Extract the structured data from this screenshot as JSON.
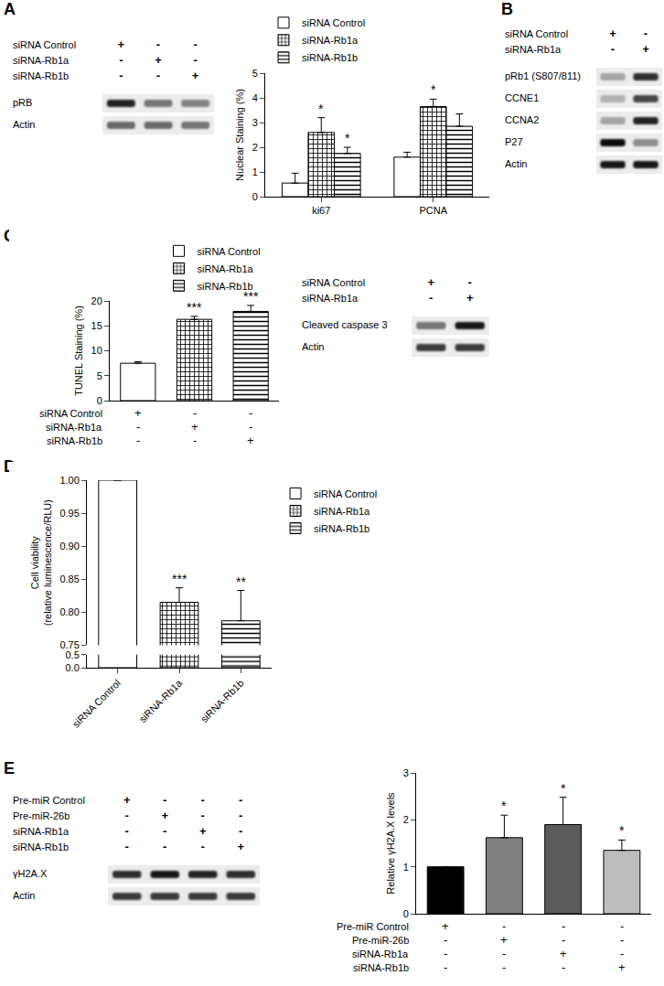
{
  "panel_letters": [
    "A",
    "B",
    "C",
    "D",
    "E"
  ],
  "blots": [
    {
      "conditions": [
        {
          "label": "siRNA Control",
          "marks": [
            "+",
            "-",
            "-"
          ]
        },
        {
          "label": "siRNA-Rb1a",
          "marks": [
            "-",
            "+",
            "-"
          ]
        },
        {
          "label": "siRNA-Rb1b",
          "marks": [
            "-",
            "-",
            "+"
          ]
        }
      ],
      "bands": [
        {
          "label": "pRB",
          "levels": [
            0.85,
            0.5,
            0.45
          ]
        },
        {
          "label": "Actin",
          "levels": [
            0.55,
            0.55,
            0.5
          ]
        }
      ]
    },
    {
      "conditions": [
        {
          "label": "siRNA Control",
          "marks": [
            "+",
            "-"
          ]
        },
        {
          "label": "siRNA-Rb1a",
          "marks": [
            "-",
            "+"
          ]
        }
      ],
      "bands": [
        {
          "label": "pRb1 (S807/811)",
          "levels": [
            0.3,
            0.8
          ]
        },
        {
          "label": "CCNE1",
          "levels": [
            0.25,
            0.7
          ]
        },
        {
          "label": "CCNA2",
          "levels": [
            0.3,
            0.85
          ]
        },
        {
          "label": "P27",
          "levels": [
            0.95,
            0.4
          ]
        },
        {
          "label": "Actin",
          "levels": [
            0.9,
            0.9
          ]
        }
      ]
    },
    {
      "conditions": [
        {
          "label": "siRNA Control",
          "marks": [
            "+",
            "-"
          ]
        },
        {
          "label": "siRNA-Rb1a",
          "marks": [
            "-",
            "+"
          ]
        }
      ],
      "bands": [
        {
          "label": "Cleaved caspase 3",
          "levels": [
            0.5,
            0.9
          ]
        },
        {
          "label": "Actin",
          "levels": [
            0.75,
            0.75
          ]
        }
      ]
    },
    {
      "conditions": [
        {
          "label": "Pre-miR Control",
          "marks": [
            "+",
            "-",
            "-",
            "-"
          ]
        },
        {
          "label": "Pre-miR-26b",
          "marks": [
            "-",
            "+",
            "-",
            "-"
          ]
        },
        {
          "label": "siRNA-Rb1a",
          "marks": [
            "-",
            "-",
            "+",
            "-"
          ]
        },
        {
          "label": "siRNA-Rb1b",
          "marks": [
            "-",
            "-",
            "-",
            "+"
          ]
        }
      ],
      "bands": [
        {
          "label": "γH2A.X",
          "levels": [
            0.8,
            0.9,
            0.85,
            0.8
          ]
        },
        {
          "label": "Actin",
          "levels": [
            0.75,
            0.75,
            0.75,
            0.75
          ]
        }
      ]
    }
  ],
  "chart_data": [
    {
      "type": "bar",
      "categories": [
        "ki67",
        "PCNA"
      ],
      "ylabel": "Nuclear Staining (%)",
      "ylim": [
        0,
        5
      ],
      "yticks": [
        0,
        1,
        2,
        3,
        4,
        5
      ],
      "legend": "top left",
      "series": [
        {
          "name": "siRNA Control",
          "color": "#ffffff",
          "marker": "plain",
          "values": [
            0.55,
            1.6
          ],
          "error": [
            0.4,
            0.2
          ],
          "significance": [
            null,
            null
          ]
        },
        {
          "name": "siRNA-Rb1a",
          "color": "#ffffff",
          "marker": "checkered",
          "values": [
            2.6,
            3.65
          ],
          "error": [
            0.6,
            0.3
          ],
          "significance": [
            "*",
            "*"
          ]
        },
        {
          "name": "siRNA-Rb1b",
          "color": "#ffffff",
          "marker": "hlines",
          "values": [
            1.75,
            2.85
          ],
          "error": [
            0.25,
            0.5
          ],
          "significance": [
            "*",
            null
          ]
        }
      ]
    },
    {
      "type": "bar",
      "categories": [
        null,
        null,
        null
      ],
      "ylabel": "TUNEL Staining (%)",
      "ylim": [
        0,
        20
      ],
      "yticks": [
        0,
        5,
        10,
        15,
        20
      ],
      "legend": "top",
      "series": [
        {
          "name": "siRNA Control",
          "color": "#ffffff",
          "marker": "plain",
          "values": [
            7.5,
            null,
            null
          ],
          "error": [
            0.3,
            null,
            null
          ],
          "significance": [
            null,
            null,
            null
          ]
        },
        {
          "name": "siRNA-Rb1a",
          "color": "#ffffff",
          "marker": "checkered",
          "values": [
            null,
            16.3,
            null
          ],
          "error": [
            null,
            0.6,
            null
          ],
          "significance": [
            null,
            "***",
            null
          ]
        },
        {
          "name": "siRNA-Rb1b",
          "color": "#ffffff",
          "marker": "hlines",
          "values": [
            null,
            null,
            17.9
          ],
          "error": [
            null,
            null,
            1.2
          ],
          "significance": [
            null,
            null,
            "***"
          ]
        }
      ],
      "conditions": [
        {
          "label": "siRNA Control",
          "marks": [
            "+",
            "-",
            "-"
          ]
        },
        {
          "label": "siRNA-Rb1a",
          "marks": [
            "-",
            "+",
            "-"
          ]
        },
        {
          "label": "siRNA-Rb1b",
          "marks": [
            "-",
            "-",
            "+"
          ]
        }
      ]
    },
    {
      "type": "bar",
      "categories": [
        "siRNA Control",
        "siRNA-Rb1a",
        "siRNA-Rb1b"
      ],
      "ylabel": "Cell viability\n(relative luminescence/RLU)",
      "ylim": [
        0.75,
        1.0
      ],
      "yticks": [
        0.75,
        {
          "value": 0.8,
          "label": "0.80"
        },
        0.85,
        {
          "value": 0.9,
          "label": "0.90"
        },
        0.95,
        {
          "value": 1.0,
          "label": "1.00"
        }
      ],
      "ylim_lower": [
        0,
        0.5
      ],
      "yticks_lower": [
        {
          "value": 0,
          "label": "0.0"
        },
        0.5
      ],
      "legend": "right",
      "series": [
        {
          "name": "siRNA Control",
          "color": "#ffffff",
          "marker": "plain",
          "values": [
            1.0,
            null,
            null
          ],
          "error": [
            null,
            null,
            null
          ],
          "significance": [
            null,
            null,
            null
          ]
        },
        {
          "name": "siRNA-Rb1a",
          "color": "#ffffff",
          "marker": "checkered",
          "values": [
            null,
            0.815,
            null
          ],
          "error": [
            null,
            0.022,
            null
          ],
          "significance": [
            null,
            "***",
            null
          ]
        },
        {
          "name": "siRNA-Rb1b",
          "color": "#ffffff",
          "marker": "hlines",
          "values": [
            null,
            null,
            0.787
          ],
          "error": [
            null,
            null,
            0.046
          ],
          "significance": [
            null,
            null,
            "**"
          ]
        }
      ]
    },
    {
      "type": "bar",
      "categories": [
        null,
        null,
        null,
        null
      ],
      "ylabel": "Relative γH2A.X levels",
      "ylim": [
        0,
        3
      ],
      "yticks": [
        0,
        1,
        2,
        3
      ],
      "values": [
        1.0,
        1.62,
        1.9,
        1.35
      ],
      "error": [
        null,
        0.48,
        0.58,
        0.22
      ],
      "significance": [
        null,
        "*",
        "*",
        "*"
      ],
      "colors": [
        "#000000",
        "#808080",
        "#5a5a5a",
        "#bdbdbd"
      ],
      "conditions": [
        {
          "label": "Pre-miR Control",
          "marks": [
            "+",
            "-",
            "-",
            "-"
          ]
        },
        {
          "label": "Pre-miR-26b",
          "marks": [
            "-",
            "+",
            "-",
            "-"
          ]
        },
        {
          "label": "siRNA-Rb1a",
          "marks": [
            "-",
            "-",
            "+",
            "-"
          ]
        },
        {
          "label": "siRNA-Rb1b",
          "marks": [
            "-",
            "-",
            "-",
            "+"
          ]
        }
      ]
    }
  ]
}
